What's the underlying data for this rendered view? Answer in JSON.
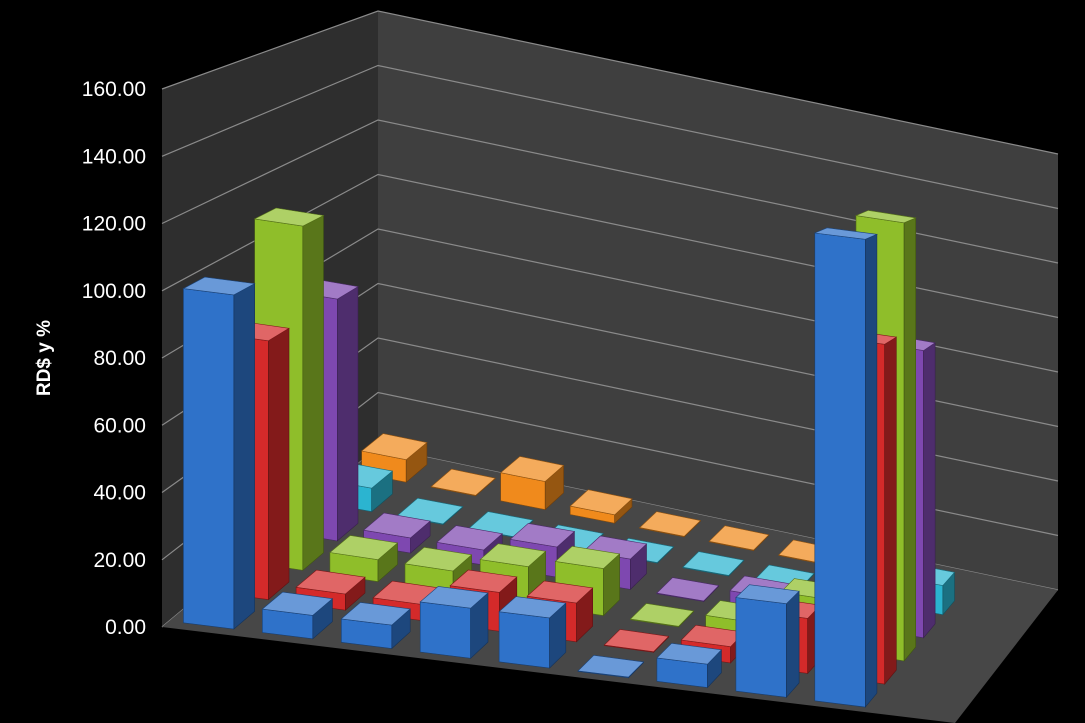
{
  "chart_data": {
    "type": "bar",
    "style": "3d-column",
    "ylabel": "RD$ y %",
    "ylim": [
      0,
      160
    ],
    "y_ticks": [
      "0.00",
      "20.00",
      "40.00",
      "60.00",
      "80.00",
      "100.00",
      "120.00",
      "140.00",
      "160.00"
    ],
    "grid": true,
    "legend": "none",
    "categories": [
      "",
      "",
      "",
      "",
      "",
      "",
      "",
      "",
      "",
      ""
    ],
    "series": [
      {
        "color": "#2f72c9",
        "values": [
          100,
          7,
          7,
          15,
          15,
          0.2,
          7,
          28,
          140,
          0
        ]
      },
      {
        "color": "#d42a2a",
        "values": [
          80,
          5,
          5,
          12,
          12,
          0.2,
          5,
          17,
          105,
          0
        ]
      },
      {
        "color": "#8fbe2a",
        "values": [
          110,
          7,
          7,
          12,
          15,
          0.2,
          5,
          16,
          140,
          0
        ]
      },
      {
        "color": "#7e48b0",
        "values": [
          80,
          5,
          5,
          10,
          10,
          0.2,
          5,
          0,
          95,
          0
        ]
      },
      {
        "color": "#2bb4d0",
        "values": [
          8,
          0.2,
          0.2,
          0.2,
          0.2,
          0.2,
          0.2,
          0.2,
          10,
          0
        ]
      },
      {
        "color": "#f08a1c",
        "values": [
          8,
          0.2,
          10,
          3,
          0.2,
          0.2,
          0.2,
          6,
          0,
          0
        ]
      }
    ]
  }
}
